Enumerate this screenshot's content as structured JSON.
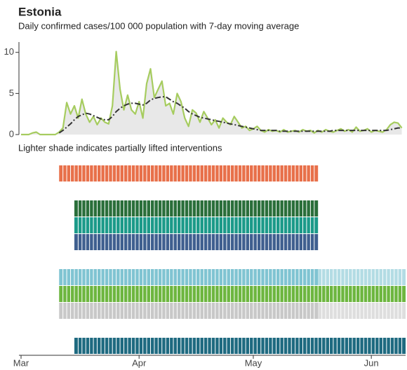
{
  "chart_data": [
    {
      "type": "line",
      "title": "Estonia",
      "subtitle": "Daily confirmed cases/100 000 population with 7-day moving average",
      "x": [
        0,
        1,
        2,
        3,
        4,
        5,
        6,
        7,
        8,
        9,
        10,
        11,
        12,
        13,
        14,
        15,
        16,
        17,
        18,
        19,
        20,
        21,
        22,
        23,
        24,
        25,
        26,
        27,
        28,
        29,
        30,
        31,
        32,
        33,
        34,
        35,
        36,
        37,
        38,
        39,
        40,
        41,
        42,
        43,
        44,
        45,
        46,
        47,
        48,
        49,
        50,
        51,
        52,
        53,
        54,
        55,
        56,
        57,
        58,
        59,
        60,
        61,
        62,
        63,
        64,
        65,
        66,
        67,
        68,
        69,
        70,
        71,
        72,
        73,
        74,
        75,
        76,
        77,
        78,
        79,
        80,
        81,
        82,
        83,
        84,
        85,
        86,
        87,
        88,
        89,
        90,
        91,
        92,
        93,
        94,
        95,
        96,
        97,
        98,
        99,
        100
      ],
      "series": [
        {
          "color": "#a6cc5f",
          "fill": "#e8e8e8",
          "values": [
            0,
            0,
            0,
            0.2,
            0.3,
            0,
            0,
            0,
            0,
            0,
            0.3,
            0.8,
            3.9,
            2.5,
            3.5,
            2.0,
            4.3,
            2.5,
            1.5,
            2.2,
            1.2,
            2.0,
            1.5,
            1.3,
            3.5,
            10.1,
            5.5,
            3.0,
            4.8,
            3.0,
            2.5,
            4.0,
            2.0,
            6.2,
            8.0,
            4.5,
            5.5,
            6.5,
            3.5,
            3.8,
            2.5,
            5.0,
            4.0,
            2.0,
            1.0,
            3.0,
            2.6,
            1.5,
            2.8,
            2.0,
            1.2,
            1.8,
            0.8,
            2.0,
            1.5,
            1.2,
            2.2,
            1.5,
            0.8,
            1.0,
            0.5,
            0.7,
            1.0,
            0.5,
            0.3,
            0.6,
            0.4,
            0.5,
            0.3,
            0.6,
            0.3,
            0.4,
            0.5,
            0.3,
            0.6,
            0.4,
            0.5,
            0.2,
            0.5,
            0.3,
            0.6,
            0.4,
            0.3,
            0.5,
            0.7,
            0.4,
            0.6,
            0.3,
            0.9,
            0.4,
            0.5,
            0.7,
            0.3,
            0.5,
            0.4,
            0.3,
            0.6,
            1.2,
            1.5,
            1.4,
            0.8
          ]
        },
        {
          "color": "#333333",
          "dash": "8 3 2 3",
          "values": [
            null,
            null,
            null,
            null,
            null,
            null,
            null,
            null,
            null,
            null,
            0.2,
            0.5,
            0.9,
            1.3,
            1.8,
            2.2,
            2.4,
            2.6,
            2.5,
            2.3,
            2.1,
            1.9,
            1.8,
            1.8,
            2.2,
            2.8,
            3.2,
            3.5,
            3.7,
            3.8,
            3.8,
            3.7,
            3.6,
            3.8,
            4.2,
            4.4,
            4.5,
            4.6,
            4.6,
            4.3,
            4.0,
            3.8,
            3.5,
            3.2,
            2.8,
            2.5,
            2.3,
            2.1,
            2.0,
            1.9,
            1.8,
            1.7,
            1.6,
            1.5,
            1.4,
            1.3,
            1.2,
            1.1,
            1.0,
            0.9,
            0.8,
            0.7,
            0.6,
            0.5,
            0.5,
            0.5,
            0.5,
            0.5,
            0.4,
            0.4,
            0.4,
            0.4,
            0.4,
            0.4,
            0.4,
            0.4,
            0.4,
            0.4,
            0.4,
            0.4,
            0.4,
            0.4,
            0.5,
            0.5,
            0.5,
            0.5,
            0.5,
            0.5,
            0.5,
            0.5,
            0.5,
            0.5,
            0.5,
            0.5,
            0.5,
            0.5,
            0.5,
            0.6,
            0.7,
            0.8,
            0.8
          ]
        }
      ],
      "ylim": [
        0,
        11
      ],
      "yticks": [
        0,
        5,
        10
      ]
    },
    {
      "type": "timeline",
      "annotation": "Lighter shade indicates partially lifted interventions",
      "xlim": [
        0,
        101
      ],
      "xticks": [
        {
          "value": 0,
          "label": "Mar"
        },
        {
          "value": 31,
          "label": "Apr"
        },
        {
          "value": 61,
          "label": "May"
        },
        {
          "value": 92,
          "label": "Jun"
        }
      ],
      "rows": [
        {
          "color": "#e8704a",
          "start": 10,
          "end": 78
        },
        {
          "color": "#2a6e3a",
          "start": 14,
          "end": 78
        },
        {
          "color": "#1b9a89",
          "start": 14,
          "end": 78
        },
        {
          "color": "#3f5f8f",
          "start": 14,
          "end": 78
        },
        {
          "color": "#80c4d2",
          "start": 10,
          "end": 78,
          "lifted_color": "#b3dce4",
          "lifted_end": 101
        },
        {
          "color": "#6db63f",
          "start": 10,
          "end": 101
        },
        {
          "color": "#c8c8c8",
          "start": 10,
          "end": 78,
          "lifted_color": "#dedede",
          "lifted_end": 101
        },
        {
          "color": "#1e6a80",
          "start": 14,
          "end": 101
        }
      ]
    }
  ]
}
